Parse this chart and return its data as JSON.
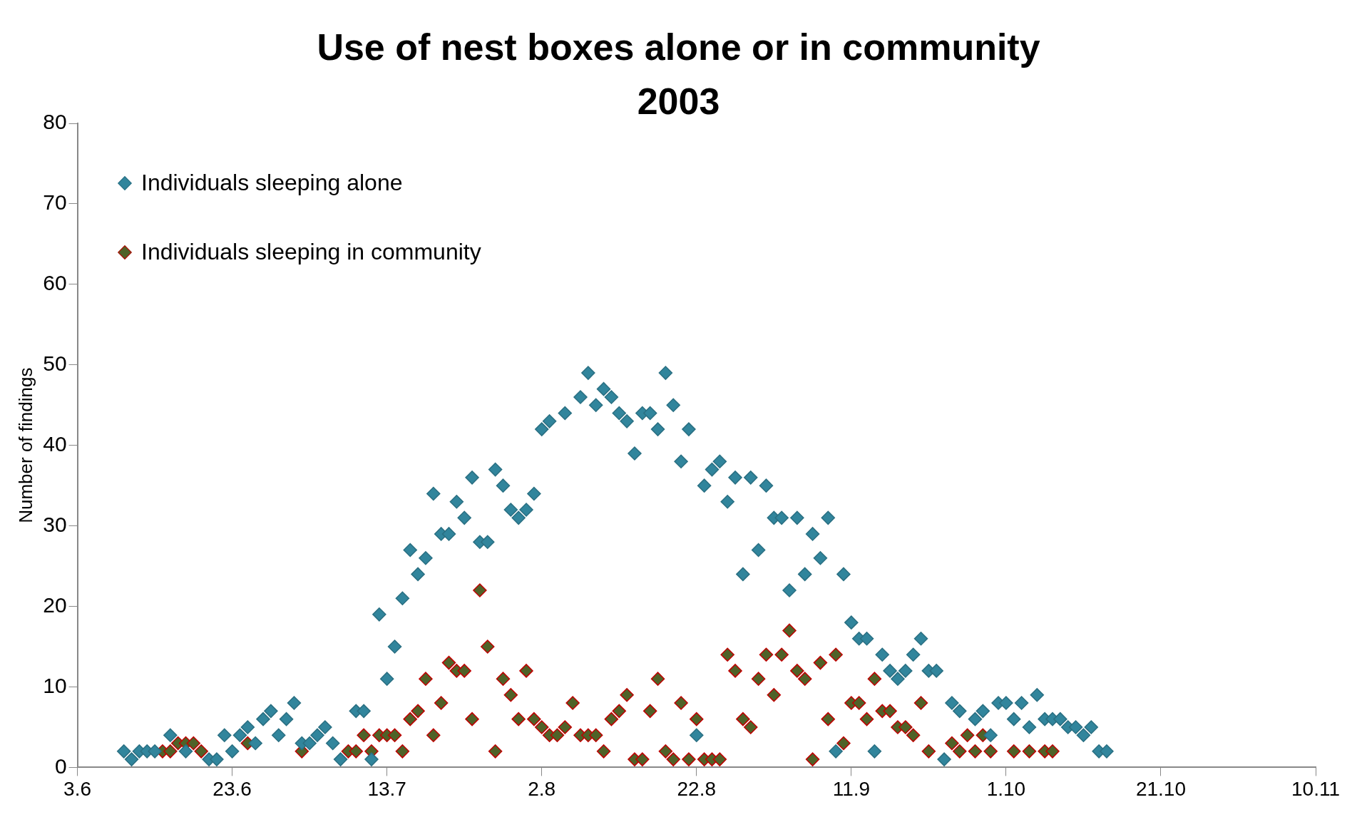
{
  "chart_data": {
    "type": "scatter",
    "title": "Use of nest boxes alone or in community 2003",
    "ylabel": "Number of findings",
    "marker": "diamond",
    "legend": "top left",
    "xlim": [
      "--06-03",
      "--11-10"
    ],
    "xticks": [
      {
        "value": "--06-03",
        "label": "3.6"
      },
      {
        "value": "--06-23",
        "label": "23.6"
      },
      {
        "value": "--07-13",
        "label": "13.7"
      },
      {
        "value": "--08-02",
        "label": "2.8"
      },
      {
        "value": "--08-22",
        "label": "22.8"
      },
      {
        "value": "--09-11",
        "label": "11.9"
      },
      {
        "value": "--10-01",
        "label": "1.10"
      },
      {
        "value": "--10-21",
        "label": "21.10"
      },
      {
        "value": "--11-10",
        "label": "10.11"
      }
    ],
    "ylim": [
      0,
      80
    ],
    "yticks": [
      0,
      10,
      20,
      30,
      40,
      50,
      60,
      70,
      80
    ],
    "series": [
      {
        "name": "Individuals sleeping alone",
        "color": "#31859c",
        "x": [
          "--06-09",
          "--06-10",
          "--06-11",
          "--06-12",
          "--06-13",
          "--06-15",
          "--06-17",
          "--06-20",
          "--06-21",
          "--06-22",
          "--06-23",
          "--06-24",
          "--06-25",
          "--06-26",
          "--06-27",
          "--06-28",
          "--06-29",
          "--06-30",
          "--07-01",
          "--07-02",
          "--07-03",
          "--07-04",
          "--07-05",
          "--07-06",
          "--07-07",
          "--07-09",
          "--07-10",
          "--07-11",
          "--07-12",
          "--07-13",
          "--07-14",
          "--07-15",
          "--07-16",
          "--07-17",
          "--07-18",
          "--07-19",
          "--07-20",
          "--07-21",
          "--07-22",
          "--07-23",
          "--07-24",
          "--07-25",
          "--07-26",
          "--07-27",
          "--07-28",
          "--07-29",
          "--07-30",
          "--07-31",
          "--08-01",
          "--08-02",
          "--08-03",
          "--08-05",
          "--08-07",
          "--08-08",
          "--08-09",
          "--08-10",
          "--08-11",
          "--08-12",
          "--08-13",
          "--08-14",
          "--08-15",
          "--08-16",
          "--08-17",
          "--08-18",
          "--08-19",
          "--08-20",
          "--08-21",
          "--08-22",
          "--08-23",
          "--08-24",
          "--08-25",
          "--08-26",
          "--08-27",
          "--08-28",
          "--08-29",
          "--08-30",
          "--08-31",
          "--09-01",
          "--09-02",
          "--09-03",
          "--09-04",
          "--09-05",
          "--09-06",
          "--09-07",
          "--09-08",
          "--09-09",
          "--09-10",
          "--09-11",
          "--09-12",
          "--09-13",
          "--09-14",
          "--09-15",
          "--09-16",
          "--09-17",
          "--09-18",
          "--09-19",
          "--09-20",
          "--09-21",
          "--09-22",
          "--09-23",
          "--09-24",
          "--09-25",
          "--09-27",
          "--09-28",
          "--09-29",
          "--09-30",
          "--10-01",
          "--10-02",
          "--10-03",
          "--10-04",
          "--10-05",
          "--10-06",
          "--10-07",
          "--10-08",
          "--10-09",
          "--10-10",
          "--10-11",
          "--10-12",
          "--10-13",
          "--10-14"
        ],
        "values": [
          2,
          1,
          2,
          2,
          2,
          4,
          2,
          1,
          1,
          4,
          2,
          4,
          5,
          3,
          6,
          7,
          4,
          6,
          8,
          3,
          3,
          4,
          5,
          3,
          1,
          7,
          7,
          1,
          19,
          11,
          15,
          21,
          27,
          24,
          26,
          34,
          29,
          29,
          33,
          31,
          36,
          28,
          28,
          37,
          35,
          32,
          31,
          32,
          34,
          42,
          43,
          44,
          46,
          49,
          45,
          47,
          46,
          44,
          43,
          39,
          44,
          44,
          42,
          49,
          45,
          38,
          42,
          4,
          35,
          37,
          38,
          33,
          36,
          24,
          36,
          27,
          35,
          31,
          31,
          22,
          31,
          24,
          29,
          26,
          31,
          2,
          24,
          18,
          16,
          16,
          2,
          14,
          12,
          11,
          12,
          14,
          16,
          12,
          12,
          1,
          8,
          7,
          6,
          7,
          4,
          8,
          8,
          6,
          8,
          5,
          9,
          6,
          6,
          6,
          5,
          5,
          4,
          5,
          2,
          2
        ]
      },
      {
        "name": "Individuals sleeping in community",
        "color": "#4f6228",
        "x": [
          "--06-14",
          "--06-15",
          "--06-16",
          "--06-17",
          "--06-18",
          "--06-19",
          "--06-25",
          "--07-02",
          "--07-08",
          "--07-09",
          "--07-10",
          "--07-11",
          "--07-12",
          "--07-13",
          "--07-14",
          "--07-15",
          "--07-16",
          "--07-17",
          "--07-18",
          "--07-19",
          "--07-20",
          "--07-21",
          "--07-22",
          "--07-23",
          "--07-24",
          "--07-25",
          "--07-26",
          "--07-27",
          "--07-28",
          "--07-29",
          "--07-30",
          "--07-31",
          "--08-01",
          "--08-02",
          "--08-03",
          "--08-04",
          "--08-05",
          "--08-06",
          "--08-07",
          "--08-08",
          "--08-09",
          "--08-10",
          "--08-11",
          "--08-12",
          "--08-13",
          "--08-14",
          "--08-15",
          "--08-16",
          "--08-17",
          "--08-18",
          "--08-19",
          "--08-20",
          "--08-21",
          "--08-22",
          "--08-23",
          "--08-24",
          "--08-25",
          "--08-26",
          "--08-27",
          "--08-28",
          "--08-29",
          "--08-30",
          "--08-31",
          "--09-01",
          "--09-02",
          "--09-03",
          "--09-04",
          "--09-05",
          "--09-06",
          "--09-07",
          "--09-08",
          "--09-09",
          "--09-10",
          "--09-11",
          "--09-12",
          "--09-13",
          "--09-14",
          "--09-15",
          "--09-16",
          "--09-17",
          "--09-18",
          "--09-19",
          "--09-20",
          "--09-21",
          "--09-24",
          "--09-25",
          "--09-26",
          "--09-27",
          "--09-28",
          "--09-29",
          "--10-02",
          "--10-04",
          "--10-06",
          "--10-07"
        ],
        "values": [
          2,
          2,
          3,
          3,
          3,
          2,
          3,
          2,
          2,
          2,
          4,
          2,
          4,
          4,
          4,
          2,
          6,
          7,
          11,
          4,
          8,
          13,
          12,
          12,
          6,
          22,
          15,
          2,
          11,
          9,
          6,
          12,
          6,
          5,
          4,
          4,
          5,
          8,
          4,
          4,
          4,
          2,
          6,
          7,
          9,
          1,
          1,
          7,
          11,
          2,
          1,
          8,
          1,
          6,
          1,
          1,
          1,
          14,
          12,
          6,
          5,
          11,
          14,
          9,
          14,
          17,
          12,
          11,
          1,
          13,
          6,
          14,
          3,
          8,
          8,
          6,
          11,
          7,
          7,
          5,
          5,
          4,
          8,
          2,
          3,
          2,
          4,
          2,
          4,
          2,
          2,
          2,
          2,
          2
        ]
      }
    ]
  }
}
